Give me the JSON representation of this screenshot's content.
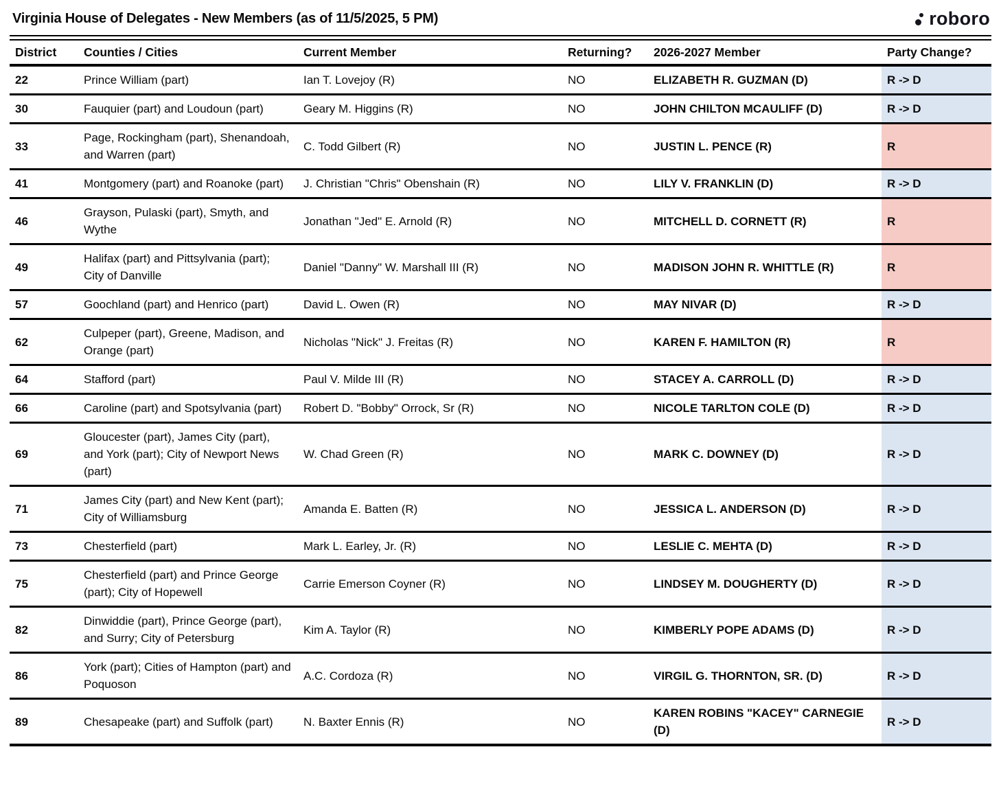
{
  "header": {
    "title": "Virginia House of Delegates - New Members (as of 11/5/2025, 5 PM)",
    "logo": {
      "text": "roboro"
    }
  },
  "table": {
    "columns": [
      "District",
      "Counties / Cities",
      "Current Member",
      "Returning?",
      "2026-2027 Member",
      "Party Change?"
    ],
    "party_colors": {
      "dem": "#dbe5f2",
      "rep": "#f6cbc5"
    },
    "rows": [
      {
        "district": "22",
        "counties": "Prince William (part)",
        "current_member": "Ian T. Lovejoy (R)",
        "returning": "NO",
        "new_member": "ELIZABETH R. GUZMAN (D)",
        "party_change": "R -> D",
        "change": "dem"
      },
      {
        "district": "30",
        "counties": "Fauquier (part) and Loudoun (part)",
        "current_member": "Geary M. Higgins (R)",
        "returning": "NO",
        "new_member": "JOHN CHILTON MCAULIFF (D)",
        "party_change": "R -> D",
        "change": "dem"
      },
      {
        "district": "33",
        "counties": "Page, Rockingham (part), Shenandoah, and Warren (part)",
        "current_member": "C. Todd Gilbert (R)",
        "returning": "NO",
        "new_member": "JUSTIN L. PENCE (R)",
        "party_change": "R",
        "change": "rep"
      },
      {
        "district": "41",
        "counties": "Montgomery (part) and Roanoke (part)",
        "current_member": "J. Christian \"Chris\" Obenshain (R)",
        "returning": "NO",
        "new_member": "LILY V. FRANKLIN (D)",
        "party_change": "R -> D",
        "change": "dem"
      },
      {
        "district": "46",
        "counties": "Grayson, Pulaski (part), Smyth, and Wythe",
        "current_member": "Jonathan \"Jed\" E. Arnold (R)",
        "returning": "NO",
        "new_member": "MITCHELL D. CORNETT (R)",
        "party_change": "R",
        "change": "rep"
      },
      {
        "district": "49",
        "counties": "Halifax (part) and Pittsylvania (part); City of Danville",
        "current_member": "Daniel \"Danny\" W. Marshall III (R)",
        "returning": "NO",
        "new_member": "MADISON JOHN R. WHITTLE (R)",
        "party_change": "R",
        "change": "rep"
      },
      {
        "district": "57",
        "counties": "Goochland (part) and Henrico (part)",
        "current_member": "David L. Owen (R)",
        "returning": "NO",
        "new_member": "MAY NIVAR (D)",
        "party_change": "R -> D",
        "change": "dem"
      },
      {
        "district": "62",
        "counties": "Culpeper (part), Greene, Madison, and Orange (part)",
        "current_member": "Nicholas \"Nick\" J. Freitas (R)",
        "returning": "NO",
        "new_member": "KAREN F. HAMILTON (R)",
        "party_change": "R",
        "change": "rep"
      },
      {
        "district": "64",
        "counties": "Stafford (part)",
        "current_member": "Paul V. Milde III (R)",
        "returning": "NO",
        "new_member": "STACEY A. CARROLL (D)",
        "party_change": "R -> D",
        "change": "dem"
      },
      {
        "district": "66",
        "counties": "Caroline (part) and Spotsylvania (part)",
        "current_member": "Robert D. \"Bobby\" Orrock, Sr (R)",
        "returning": "NO",
        "new_member": "NICOLE TARLTON COLE (D)",
        "party_change": "R -> D",
        "change": "dem"
      },
      {
        "district": "69",
        "counties": "Gloucester (part), James City (part), and York (part); City of Newport News (part)",
        "current_member": "W. Chad Green (R)",
        "returning": "NO",
        "new_member": "MARK C. DOWNEY (D)",
        "party_change": "R -> D",
        "change": "dem"
      },
      {
        "district": "71",
        "counties": "James City (part) and New Kent (part); City of Williamsburg",
        "current_member": "Amanda E. Batten (R)",
        "returning": "NO",
        "new_member": "JESSICA L. ANDERSON (D)",
        "party_change": "R -> D",
        "change": "dem"
      },
      {
        "district": "73",
        "counties": "Chesterfield (part)",
        "current_member": "Mark L. Earley, Jr. (R)",
        "returning": "NO",
        "new_member": "LESLIE C. MEHTA (D)",
        "party_change": "R -> D",
        "change": "dem"
      },
      {
        "district": "75",
        "counties": "Chesterfield (part) and Prince George (part); City of Hopewell",
        "current_member": "Carrie Emerson Coyner (R)",
        "returning": "NO",
        "new_member": "LINDSEY M. DOUGHERTY (D)",
        "party_change": "R -> D",
        "change": "dem"
      },
      {
        "district": "82",
        "counties": "Dinwiddie (part), Prince George (part), and Surry; City of Petersburg",
        "current_member": "Kim A. Taylor (R)",
        "returning": "NO",
        "new_member": "KIMBERLY POPE ADAMS (D)",
        "party_change": "R -> D",
        "change": "dem"
      },
      {
        "district": "86",
        "counties": "York (part); Cities of Hampton (part) and Poquoson",
        "current_member": "A.C. Cordoza (R)",
        "returning": "NO",
        "new_member": "VIRGIL G. THORNTON, SR. (D)",
        "party_change": "R -> D",
        "change": "dem"
      },
      {
        "district": "89",
        "counties": "Chesapeake (part) and Suffolk (part)",
        "current_member": "N. Baxter Ennis (R)",
        "returning": "NO",
        "new_member": "KAREN ROBINS \"KACEY\" CARNEGIE (D)",
        "party_change": "R -> D",
        "change": "dem"
      }
    ]
  }
}
